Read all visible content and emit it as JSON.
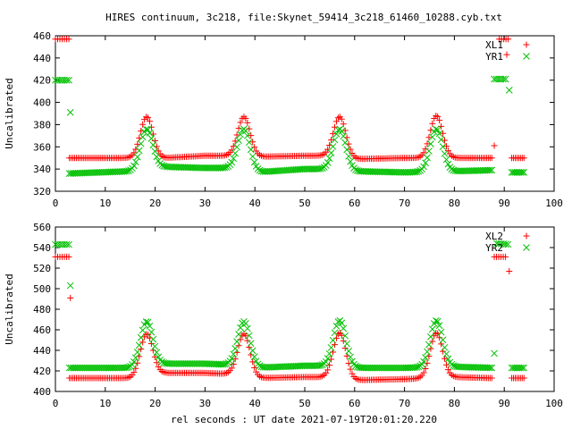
{
  "figure": {
    "title": "HIRES continuum, 3c218, file:Skynet_59414_3c218_61460_10288.cyb.txt",
    "xlabel": "rel seconds : UT date 2021-07-19T20:01:20.220"
  },
  "colors": {
    "red": "#ff0000",
    "green": "#00c000",
    "axis": "#000000"
  },
  "chart_data": [
    {
      "type": "scatter",
      "ylabel": "Uncalibrated",
      "xlim": [
        0,
        100
      ],
      "ylim": [
        320,
        460
      ],
      "xticks": [
        0,
        10,
        20,
        30,
        40,
        50,
        60,
        70,
        80,
        90,
        100
      ],
      "yticks": [
        320,
        340,
        360,
        380,
        400,
        420,
        440,
        460
      ],
      "legend": "top-right",
      "series": [
        {
          "name": "XL1",
          "marker": "plus",
          "color": "#ff0000",
          "level": [
            [
              0,
              457
            ],
            [
              2.7,
              457
            ]
          ],
          "tail": [
            [
              88,
              361
            ],
            [
              90.5,
              443
            ]
          ],
          "high": [
            [
              89,
              457
            ],
            [
              91,
              457
            ]
          ],
          "segments": [
            {
              "x0": 2.8,
              "x1": 87.5,
              "base": [
                [
                  2.8,
                  350
                ],
                [
                  15,
                  350
                ],
                [
                  22,
                  350
                ],
                [
                  30,
                  352
                ],
                [
                  35,
                  352
                ],
                [
                  40,
                  351
                ],
                [
                  50,
                  352
                ],
                [
                  55,
                  352
                ],
                [
                  60,
                  349
                ],
                [
                  70,
                  350
                ],
                [
                  74,
                  350
                ],
                [
                  80,
                  350
                ],
                [
                  87.5,
                  350
                ]
              ],
              "peaks": [
                [
                  18.3,
                  387
                ],
                [
                  37.8,
                  387
                ],
                [
                  57.0,
                  387
                ],
                [
                  76.4,
                  388
                ]
              ]
            },
            {
              "x0": 91.5,
              "x1": 94,
              "base": [
                [
                  91.5,
                  350
                ],
                [
                  94,
                  350
                ]
              ],
              "peaks": []
            }
          ]
        },
        {
          "name": "YR1",
          "marker": "cross",
          "color": "#00c000",
          "level": [
            [
              0,
              420
            ],
            [
              2.7,
              420
            ]
          ],
          "tail": [
            [
              3,
              391
            ],
            [
              91,
              411
            ]
          ],
          "high": [
            [
              88,
              421
            ],
            [
              90.5,
              421
            ]
          ],
          "segments": [
            {
              "x0": 2.8,
              "x1": 87.5,
              "base": [
                [
                  2.8,
                  336
                ],
                [
                  15,
                  338
                ],
                [
                  22,
                  342
                ],
                [
                  30,
                  341
                ],
                [
                  35,
                  341
                ],
                [
                  40,
                  337
                ],
                [
                  50,
                  340
                ],
                [
                  55,
                  340
                ],
                [
                  60,
                  338
                ],
                [
                  70,
                  337
                ],
                [
                  80,
                  338
                ],
                [
                  87.5,
                  339
                ]
              ],
              "peaks": [
                [
                  18.3,
                  376
                ],
                [
                  37.8,
                  376
                ],
                [
                  57.0,
                  376
                ],
                [
                  76.4,
                  376
                ]
              ]
            },
            {
              "x0": 91.5,
              "x1": 94,
              "base": [
                [
                  91.5,
                  337
                ],
                [
                  94,
                  337
                ]
              ],
              "peaks": []
            }
          ]
        }
      ]
    },
    {
      "type": "scatter",
      "ylabel": "Uncalibrated",
      "xlim": [
        0,
        100
      ],
      "ylim": [
        400,
        560
      ],
      "xticks": [
        0,
        10,
        20,
        30,
        40,
        50,
        60,
        70,
        80,
        90,
        100
      ],
      "yticks": [
        400,
        420,
        440,
        460,
        480,
        500,
        520,
        540,
        560
      ],
      "legend": "top-right",
      "series": [
        {
          "name": "XL2",
          "marker": "plus",
          "color": "#ff0000",
          "level": [
            [
              0,
              531
            ],
            [
              2.7,
              531
            ]
          ],
          "tail": [
            [
              3,
              491
            ],
            [
              91,
              517
            ]
          ],
          "high": [
            [
              88,
              531
            ],
            [
              90.5,
              531
            ]
          ],
          "segments": [
            {
              "x0": 2.8,
              "x1": 87.5,
              "base": [
                [
                  2.8,
                  413
                ],
                [
                  15,
                  413
                ],
                [
                  22,
                  418
                ],
                [
                  30,
                  418
                ],
                [
                  35,
                  417
                ],
                [
                  40,
                  413
                ],
                [
                  50,
                  414
                ],
                [
                  55,
                  414
                ],
                [
                  60,
                  411
                ],
                [
                  70,
                  412
                ],
                [
                  80,
                  414
                ],
                [
                  87.5,
                  413
                ]
              ],
              "peaks": [
                [
                  18.3,
                  456
                ],
                [
                  37.8,
                  456
                ],
                [
                  57.0,
                  457
                ],
                [
                  76.4,
                  457
                ]
              ]
            },
            {
              "x0": 91.5,
              "x1": 94,
              "base": [
                [
                  91.5,
                  413
                ],
                [
                  94,
                  413
                ]
              ],
              "peaks": []
            }
          ]
        },
        {
          "name": "YR2",
          "marker": "cross",
          "color": "#00c000",
          "level": [
            [
              0,
              543
            ],
            [
              2.7,
              543
            ]
          ],
          "tail": [
            [
              3,
              503
            ],
            [
              88,
              437
            ]
          ],
          "high": [
            [
              88.5,
              544
            ],
            [
              91,
              543
            ]
          ],
          "segments": [
            {
              "x0": 2.8,
              "x1": 87.5,
              "base": [
                [
                  2.8,
                  423
                ],
                [
                  15,
                  423
                ],
                [
                  22,
                  427
                ],
                [
                  30,
                  427
                ],
                [
                  35,
                  426
                ],
                [
                  40,
                  423
                ],
                [
                  50,
                  425
                ],
                [
                  55,
                  425
                ],
                [
                  60,
                  423
                ],
                [
                  70,
                  423
                ],
                [
                  80,
                  424
                ],
                [
                  87.5,
                  423
                ]
              ],
              "peaks": [
                [
                  18.3,
                  468
                ],
                [
                  37.8,
                  468
                ],
                [
                  57.0,
                  469
                ],
                [
                  76.4,
                  469
                ]
              ]
            },
            {
              "x0": 91.5,
              "x1": 94,
              "base": [
                [
                  91.5,
                  423
                ],
                [
                  94,
                  423
                ]
              ],
              "peaks": []
            }
          ]
        }
      ]
    }
  ]
}
